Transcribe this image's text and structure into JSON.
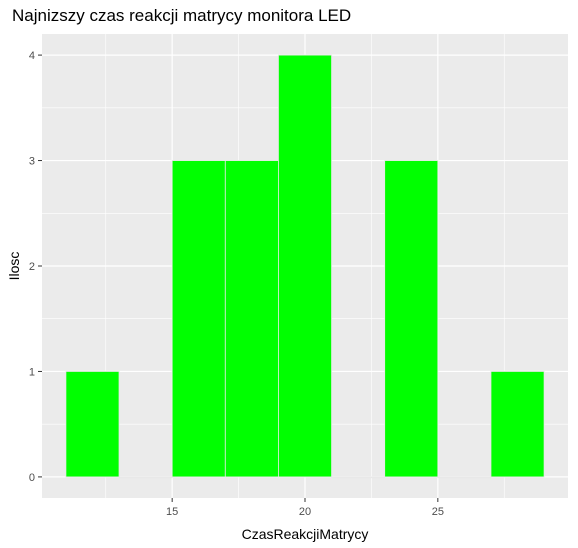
{
  "chart_data": {
    "type": "bar",
    "title": "Najnizszy czas reakcji matrycy monitora LED",
    "xlabel": "CzasReakcjiMatrycy",
    "ylabel": "Ilosc",
    "bins": [
      {
        "x0": 11,
        "x1": 13,
        "count": 1
      },
      {
        "x0": 13,
        "x1": 15,
        "count": 0
      },
      {
        "x0": 15,
        "x1": 17,
        "count": 3
      },
      {
        "x0": 17,
        "x1": 19,
        "count": 3
      },
      {
        "x0": 19,
        "x1": 21,
        "count": 4
      },
      {
        "x0": 21,
        "x1": 23,
        "count": 0
      },
      {
        "x0": 23,
        "x1": 25,
        "count": 3
      },
      {
        "x0": 25,
        "x1": 27,
        "count": 0
      },
      {
        "x0": 27,
        "x1": 29,
        "count": 1
      }
    ],
    "x_ticks": [
      15,
      20,
      25
    ],
    "y_ticks": [
      0,
      1,
      2,
      3,
      4
    ],
    "xlim": [
      10.1,
      29.9
    ],
    "ylim": [
      -0.2,
      4.2
    ],
    "grid": true,
    "bar_color": "#00ff00",
    "bar_outline": "#e8e8e8",
    "panel_background": "#ebebeb"
  }
}
